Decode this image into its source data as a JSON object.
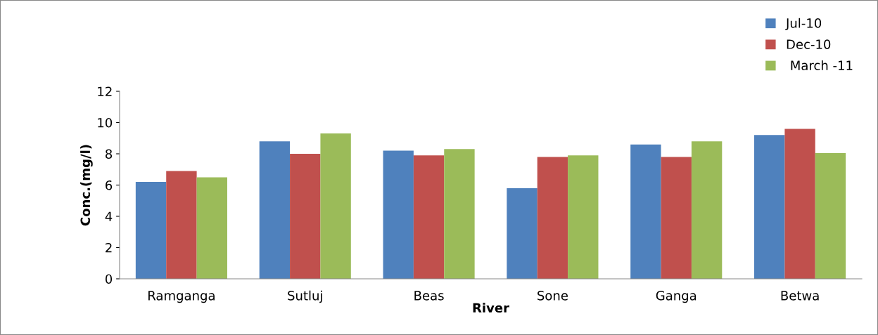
{
  "chart_data": {
    "type": "bar",
    "xlabel": "River",
    "ylabel": "Conc.(mg/l)",
    "categories": [
      "Ramganga",
      "Sutluj",
      "Beas",
      "Sone",
      "Ganga",
      "Betwa"
    ],
    "series": [
      {
        "name": "Jul-10",
        "color": "#4f81bd",
        "values": [
          6.2,
          8.8,
          8.2,
          5.8,
          8.6,
          9.2
        ]
      },
      {
        "name": "Dec-10",
        "color": "#c0504d",
        "values": [
          6.9,
          8.0,
          7.9,
          7.8,
          7.8,
          9.6
        ]
      },
      {
        "name": " March -11",
        "color": "#9bbb59",
        "values": [
          6.5,
          9.3,
          8.3,
          7.9,
          8.8,
          8.05
        ]
      }
    ],
    "ylim": [
      0,
      12
    ],
    "yticks": [
      0,
      2,
      4,
      6,
      8,
      10,
      12
    ],
    "grid": false,
    "legend": "top right"
  }
}
